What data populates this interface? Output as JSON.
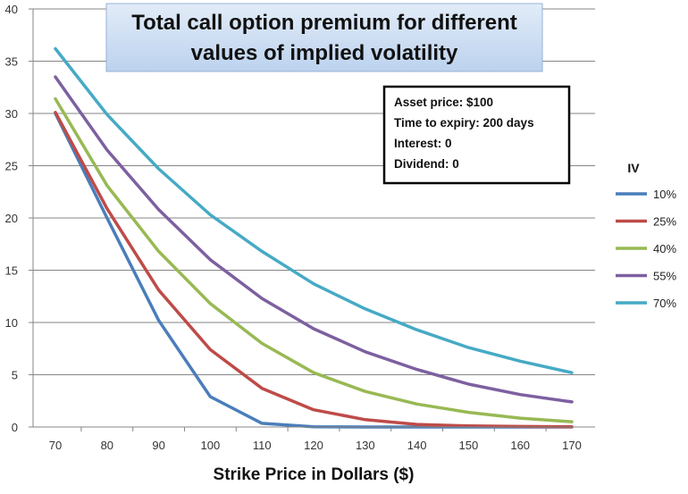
{
  "chart_data": {
    "type": "line",
    "title_lines": [
      "Total call option premium for different",
      "values of implied volatility"
    ],
    "xlabel": "Strike Price in Dollars ($)",
    "ylabel": "",
    "x": [
      70,
      80,
      90,
      100,
      110,
      120,
      130,
      140,
      150,
      160,
      170
    ],
    "xlim": [
      70,
      170
    ],
    "ylim": [
      0,
      40
    ],
    "xticks": [
      "70",
      "80",
      "90",
      "100",
      "110",
      "120",
      "130",
      "140",
      "150",
      "160",
      "170"
    ],
    "yticks": [
      "0",
      "5",
      "10",
      "15",
      "20",
      "25",
      "30",
      "35",
      "40"
    ],
    "grid": "horizontal",
    "legend": {
      "title": "IV",
      "placement": "right"
    },
    "info_box": [
      "Asset price: $100",
      "Time to expiry: 200 days",
      "Interest: 0",
      "Dividend: 0"
    ],
    "series": [
      {
        "name": "10%",
        "color": "#4a7ebb",
        "values": [
          30.0,
          20.0,
          10.2,
          2.9,
          0.35,
          0.02,
          0.0,
          0.0,
          0.0,
          0.0,
          0.0
        ]
      },
      {
        "name": "25%",
        "color": "#be4b48",
        "values": [
          30.1,
          20.9,
          13.1,
          7.4,
          3.7,
          1.65,
          0.7,
          0.25,
          0.1,
          0.05,
          0.02
        ]
      },
      {
        "name": "40%",
        "color": "#98b954",
        "values": [
          31.4,
          23.1,
          16.8,
          11.8,
          8.0,
          5.2,
          3.4,
          2.2,
          1.4,
          0.85,
          0.5
        ]
      },
      {
        "name": "55%",
        "color": "#7d60a0",
        "values": [
          33.5,
          26.5,
          20.8,
          16.0,
          12.3,
          9.4,
          7.2,
          5.5,
          4.1,
          3.1,
          2.4
        ]
      },
      {
        "name": "70%",
        "color": "#46aac5",
        "values": [
          36.2,
          29.9,
          24.7,
          20.3,
          16.8,
          13.7,
          11.3,
          9.3,
          7.6,
          6.3,
          5.2
        ]
      }
    ]
  }
}
